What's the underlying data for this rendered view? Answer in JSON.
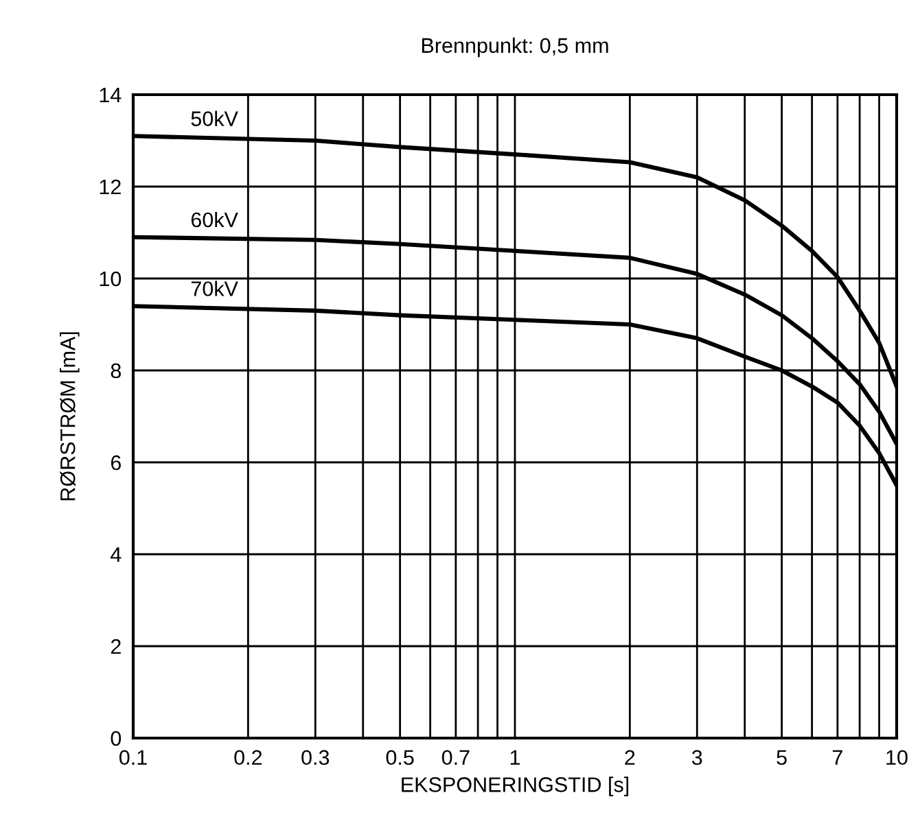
{
  "chart_data": {
    "type": "line",
    "title": "Brennpunkt: 0,5 mm",
    "xlabel": "EKSPONERINGSTID [s]",
    "ylabel": "RØRSTRØM [mA]",
    "log": "x",
    "grid": true,
    "legend": false,
    "marker": "none",
    "line_style": "solid",
    "xlim": [
      0.1,
      10
    ],
    "ylim": [
      0,
      14
    ],
    "xticks": [
      0.1,
      0.2,
      0.3,
      {
        "value": 0.4,
        "label": null
      },
      0.5,
      {
        "value": 0.6,
        "label": null
      },
      0.7,
      {
        "value": 0.8,
        "label": null
      },
      {
        "value": 0.9,
        "label": null
      },
      1,
      2,
      3,
      {
        "value": 4,
        "label": null
      },
      5,
      {
        "value": 6,
        "label": null
      },
      7,
      {
        "value": 8,
        "label": null
      },
      {
        "value": 9,
        "label": null
      },
      10
    ],
    "yticks": [
      0,
      2,
      4,
      6,
      8,
      10,
      12,
      14
    ],
    "x": [
      0.1,
      0.3,
      0.5,
      1,
      2,
      3,
      4,
      5,
      6,
      7,
      8,
      9,
      10
    ],
    "series": [
      {
        "name": "50kV",
        "color": "#000000",
        "values": [
          13.1,
          13.0,
          12.86,
          12.7,
          12.53,
          12.2,
          11.7,
          11.15,
          10.6,
          10.03,
          9.3,
          8.6,
          7.65
        ]
      },
      {
        "name": "60kV",
        "color": "#000000",
        "values": [
          10.9,
          10.84,
          10.75,
          10.6,
          10.45,
          10.1,
          9.65,
          9.2,
          8.7,
          8.2,
          7.7,
          7.1,
          6.4
        ]
      },
      {
        "name": "70kV",
        "color": "#000000",
        "values": [
          9.4,
          9.3,
          9.2,
          9.1,
          9.0,
          8.7,
          8.3,
          8.0,
          7.65,
          7.3,
          6.8,
          6.2,
          5.5
        ]
      }
    ]
  }
}
